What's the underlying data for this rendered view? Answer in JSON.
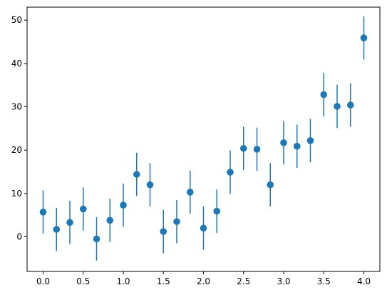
{
  "chart_data": {
    "type": "scatter",
    "title": "",
    "xlabel": "",
    "ylabel": "",
    "xlim": [
      -0.2,
      4.2
    ],
    "ylim": [
      -8,
      53
    ],
    "x_ticks": [
      0.0,
      0.5,
      1.0,
      1.5,
      2.0,
      2.5,
      3.0,
      3.5,
      4.0
    ],
    "x_tick_labels": [
      "0.0",
      "0.5",
      "1.0",
      "1.5",
      "2.0",
      "2.5",
      "3.0",
      "3.5",
      "4.0"
    ],
    "y_ticks": [
      0,
      10,
      20,
      30,
      40,
      50
    ],
    "y_tick_labels": [
      "0",
      "10",
      "20",
      "30",
      "40",
      "50"
    ],
    "grid": false,
    "legend": "none",
    "error_bar": 5,
    "color": "#1f77b4",
    "x": [
      0.0,
      0.1667,
      0.3333,
      0.5,
      0.6667,
      0.8333,
      1.0,
      1.1667,
      1.3333,
      1.5,
      1.6667,
      1.8333,
      2.0,
      2.1667,
      2.3333,
      2.5,
      2.6667,
      2.8333,
      3.0,
      3.1667,
      3.3333,
      3.5,
      3.6667,
      3.8333,
      4.0
    ],
    "y": [
      5.7,
      1.7,
      3.3,
      6.4,
      -0.5,
      3.8,
      7.3,
      14.4,
      12.0,
      1.2,
      3.5,
      10.3,
      2.0,
      5.9,
      14.9,
      20.4,
      20.2,
      12.0,
      21.7,
      20.9,
      22.2,
      32.8,
      30.1,
      30.4,
      45.9
    ]
  }
}
